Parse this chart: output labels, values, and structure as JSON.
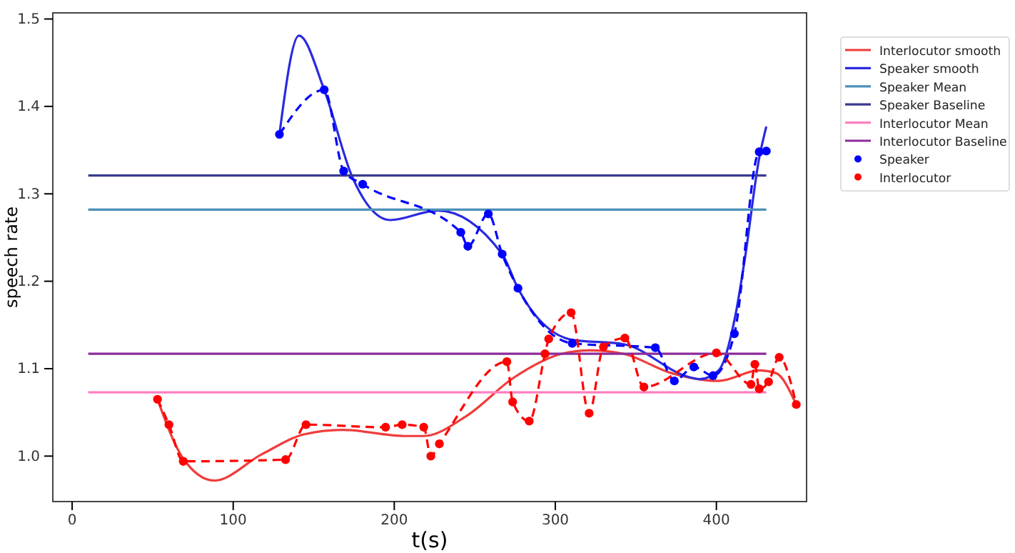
{
  "chart_data": {
    "type": "line",
    "xlabel": "t(s)",
    "ylabel": "speech rate",
    "xlim": [
      -12,
      456
    ],
    "ylim": [
      0.948,
      1.507
    ],
    "xticks": [
      0,
      100,
      200,
      300,
      400
    ],
    "yticks": [
      {
        "value": 1,
        "label": "1.0"
      },
      {
        "value": 1.1,
        "label": "1.1"
      },
      {
        "value": 1.2,
        "label": "1.2"
      },
      {
        "value": 1.3,
        "label": "1.3"
      },
      {
        "value": 1.4,
        "label": "1.4"
      },
      {
        "value": 1.5,
        "label": "1.5"
      }
    ],
    "legend": "right",
    "grid": false,
    "series": [
      {
        "name": "Interlocutor smooth",
        "color": "#f03c3c",
        "line_style": "solid",
        "marker": "none",
        "x": [
          53,
          69,
          88.2,
          117.7,
          144.3,
          168,
          206.4,
          218.3,
          244.9,
          274.4,
          303.9,
          321.6,
          342.4,
          371.9,
          401.4,
          426.6,
          436.9,
          449.6
        ],
        "values": [
          1.065,
          0.997,
          0.972,
          1.002,
          1.025,
          1.03,
          1.023,
          1.023,
          1.046,
          1.09,
          1.117,
          1.121,
          1.117,
          1.095,
          1.086,
          1.098,
          1.095,
          1.059
        ]
      },
      {
        "name": "Speaker smooth",
        "color": "#2a2ae0",
        "line_style": "solid",
        "marker": "none",
        "x": [
          128.7,
          140.8,
          156.5,
          174,
          197.5,
          227,
          267,
          276.8,
          310.5,
          342.4,
          383.7,
          389.6,
          401.4,
          411.8,
          417.7,
          426.6,
          431
        ],
        "values": [
          1.368,
          1.481,
          1.419,
          1.319,
          1.27,
          1.281,
          1.231,
          1.192,
          1.133,
          1.128,
          1.09,
          1.088,
          1.098,
          1.161,
          1.226,
          1.341,
          1.377
        ]
      },
      {
        "name": "Speaker Mean",
        "color": "#4a90b8",
        "line_style": "solid",
        "marker": "none",
        "x": [
          10,
          431
        ],
        "values": [
          1.282,
          1.282
        ]
      },
      {
        "name": "Speaker Baseline",
        "color": "#3a3a90",
        "line_style": "solid",
        "marker": "none",
        "x": [
          10,
          431
        ],
        "values": [
          1.321,
          1.321
        ]
      },
      {
        "name": "Interlocutor Mean",
        "color": "#ff80c0",
        "line_style": "solid",
        "marker": "none",
        "x": [
          10,
          431
        ],
        "values": [
          1.073,
          1.073
        ]
      },
      {
        "name": "Interlocutor Baseline",
        "color": "#8b2d9a",
        "line_style": "solid",
        "marker": "none",
        "x": [
          10,
          431
        ],
        "values": [
          1.117,
          1.117
        ]
      },
      {
        "name": "Speaker",
        "color": "#0000ff",
        "line_style": "dashed",
        "marker": "circle",
        "x": [
          128.7,
          156.5,
          168.6,
          180.4,
          241.3,
          245.7,
          258.4,
          267,
          276.8,
          310.5,
          362.1,
          373.9,
          386,
          397.9,
          411.2,
          426.6,
          431
        ],
        "values": [
          1.368,
          1.419,
          1.326,
          1.311,
          1.256,
          1.24,
          1.277,
          1.231,
          1.192,
          1.129,
          1.124,
          1.086,
          1.102,
          1.092,
          1.14,
          1.348,
          1.349
        ]
      },
      {
        "name": "Interlocutor",
        "color": "#ff0000",
        "line_style": "dashed",
        "marker": "circle",
        "x": [
          53,
          60.1,
          69,
          132.5,
          145.2,
          194.6,
          204.9,
          218.3,
          222.7,
          228,
          269.9,
          273.5,
          283.8,
          293.6,
          295.9,
          309.8,
          321,
          329.9,
          343.2,
          355,
          400,
          421.5,
          423.9,
          426.6,
          432.4,
          439,
          449.6
        ],
        "values": [
          1.065,
          1.036,
          0.994,
          0.996,
          1.036,
          1.033,
          1.036,
          1.033,
          1.0,
          1.014,
          1.108,
          1.062,
          1.04,
          1.117,
          1.134,
          1.164,
          1.049,
          1.125,
          1.135,
          1.079,
          1.118,
          1.082,
          1.105,
          1.077,
          1.085,
          1.113,
          1.059
        ]
      }
    ]
  }
}
